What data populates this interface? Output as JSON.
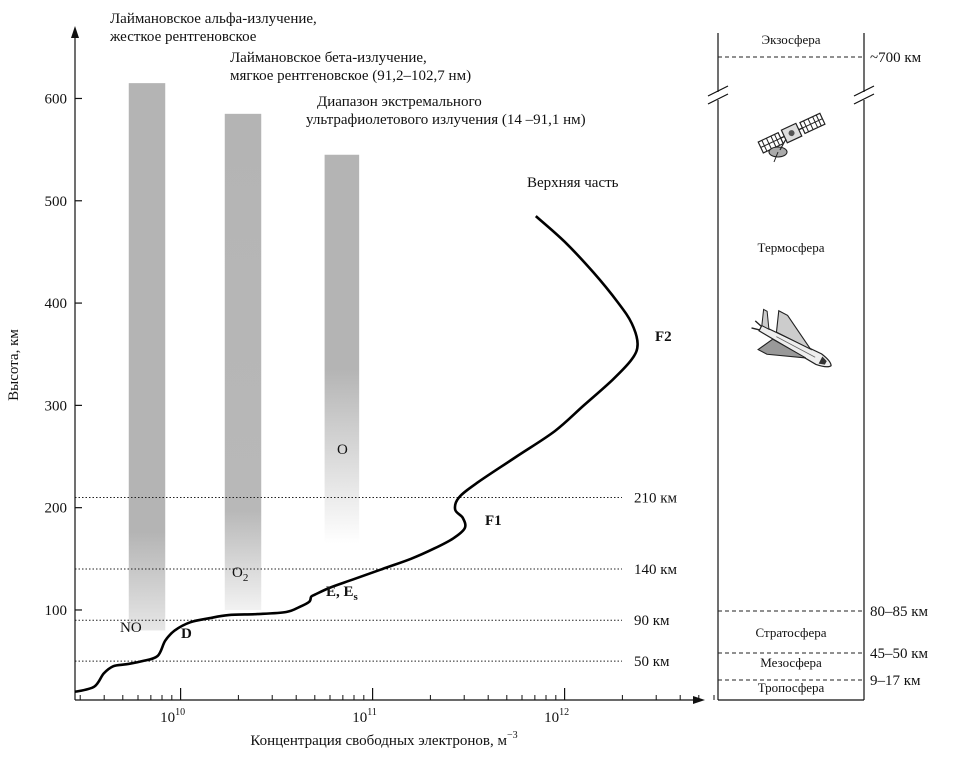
{
  "chart_data": {
    "type": "line",
    "xlabel": "Концентрация свободных электронов, м",
    "xlabel_sup": "−3",
    "ylabel": "Высота, км",
    "yticks": [
      "100",
      "200",
      "300",
      "400",
      "500",
      "600"
    ],
    "xticks": [
      {
        "base": "10",
        "exp": "10"
      },
      {
        "base": "10",
        "exp": "11"
      },
      {
        "base": "10",
        "exp": "12"
      }
    ],
    "ylim": [
      12,
      640
    ],
    "xlim_log10": [
      9.45,
      12.8
    ],
    "x_scale": "log",
    "series": [
      {
        "x_log10": [
          9.45,
          9.55,
          9.6,
          9.65,
          9.72,
          9.8,
          9.88,
          9.92,
          9.97,
          10.05,
          10.15,
          10.25,
          10.4,
          10.55,
          10.62,
          10.67,
          10.68,
          10.7,
          10.78,
          10.9,
          11.05,
          11.2,
          11.32,
          11.42,
          11.48,
          11.47,
          11.43,
          11.45,
          11.55,
          11.75,
          11.95,
          12.1,
          12.25,
          12.35,
          12.38,
          12.35,
          12.28,
          12.15,
          12.0,
          11.85
        ],
        "y_km": [
          20,
          25,
          38,
          45,
          47,
          50,
          55,
          70,
          80,
          88,
          92,
          95,
          96,
          98,
          103,
          108,
          113,
          115,
          122,
          130,
          140,
          150,
          160,
          170,
          180,
          190,
          198,
          210,
          225,
          250,
          275,
          300,
          325,
          345,
          360,
          380,
          400,
          430,
          460,
          485
        ]
      }
    ],
    "series_labels": {
      "top": "Верхняя часть",
      "f2": "F2",
      "f1": "F1",
      "e": "E, E",
      "e_sub": "s",
      "d": "D"
    },
    "bands": [
      {
        "label": "NO",
        "x_log10": [
          9.73,
          9.92
        ],
        "y_km": [
          80,
          615
        ],
        "note": "Лаймановское альфа-излучение, жесткое рентгеновское"
      },
      {
        "label": "O",
        "sub": "2",
        "x_log10": [
          10.23,
          10.42
        ],
        "y_km": [
          100,
          585
        ],
        "note": "Лаймановское бета-излучение, мягкое рентгеновское (91,2–102,7 нм)"
      },
      {
        "label": "O",
        "x_log10": [
          10.75,
          10.93
        ],
        "y_km": [
          165,
          545
        ],
        "note": "Диапазон экстремального ультрафиолетового излучения (14 –91,1 нм)"
      }
    ],
    "band_note_lines": [
      [
        "Лаймановское альфа-излучение,",
        "жесткое рентгеновское"
      ],
      [
        "Лаймановское бета-излучение,",
        "мягкое рентгеновское (91,2–102,7 нм)"
      ],
      [
        "Диапазон экстремального",
        "ультрафиолетового излучения (14 –91,1 нм)"
      ]
    ],
    "reference_lines": [
      {
        "km": 50,
        "label": "50 км"
      },
      {
        "km": 90,
        "label": "90 км"
      },
      {
        "km": 140,
        "label": "140 км"
      },
      {
        "km": 210,
        "label": "210 км"
      }
    ]
  },
  "atmosphere": {
    "layers": [
      "Экзосфера",
      "Термосфера",
      "Стратосфера",
      "Мезосфера",
      "Тропосфера"
    ],
    "boundaries": [
      "~700 км",
      "80–85 км",
      "45–50 км",
      "9–17 км"
    ],
    "icons": [
      "satellite-icon",
      "space-shuttle-icon"
    ]
  }
}
